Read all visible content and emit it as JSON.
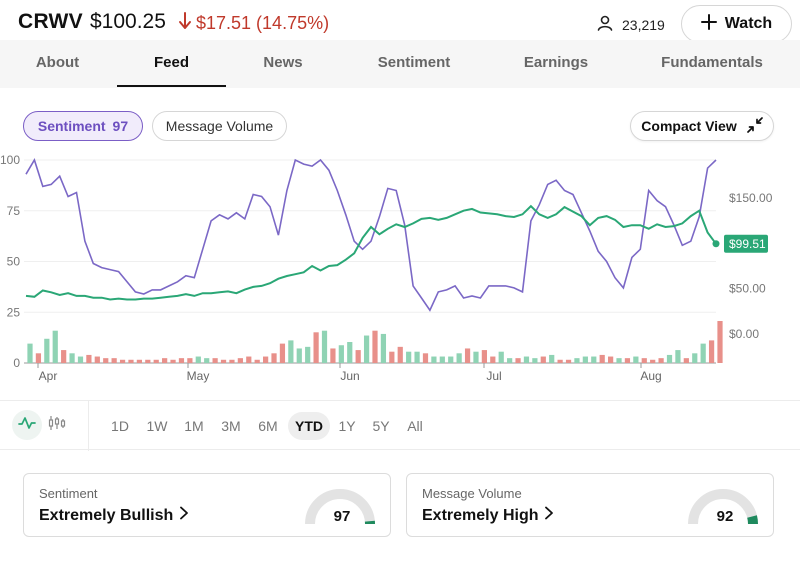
{
  "header": {
    "ticker": "CRWV",
    "price": "$100.25",
    "change": "$17.51 (14.75%)",
    "followers": "23,219",
    "watch_label": "Watch"
  },
  "tabs": [
    "About",
    "Feed",
    "News",
    "Sentiment",
    "Earnings",
    "Fundamentals"
  ],
  "active_tab": "Feed",
  "toolbar": {
    "sentiment_chip_label": "Sentiment",
    "sentiment_chip_value": "97",
    "volume_chip_label": "Message Volume",
    "compact_view_label": "Compact View"
  },
  "colors": {
    "sentiment_line": "#7b68c6",
    "price_line": "#2aa776",
    "volume_up": "#8fd3b4",
    "volume_down": "#e8908a",
    "negative": "#c0392b"
  },
  "chart_data": {
    "type": "line",
    "x_ticks": [
      "Apr",
      "May",
      "Jun",
      "Jul",
      "Aug"
    ],
    "left_axis": [
      0,
      25,
      50,
      75,
      100
    ],
    "right_axis": [
      "$0.00",
      "$50.00",
      "$150.00"
    ],
    "price_label": "$99.51",
    "series": [
      {
        "values": [
          93,
          100,
          87,
          88,
          92,
          82,
          84,
          60,
          49,
          47,
          46,
          45,
          40,
          35,
          34,
          36,
          36,
          38,
          40,
          43,
          42,
          56,
          70,
          73,
          71,
          74,
          71,
          83,
          82,
          77,
          63,
          85,
          100,
          98,
          97,
          100,
          95,
          85,
          73,
          60,
          56,
          60,
          72,
          86,
          85,
          68,
          38,
          32,
          26,
          35,
          36,
          38,
          32,
          33,
          32,
          38,
          38,
          38,
          37,
          35,
          70,
          78,
          88,
          90,
          85,
          83,
          74,
          65,
          55,
          50,
          42,
          37,
          52,
          56,
          85,
          80,
          77,
          68,
          58,
          60,
          72,
          96,
          100
        ]
      },
      {
        "values": [
          42,
          41,
          48,
          46,
          43,
          45,
          42,
          42,
          40,
          40,
          38,
          39,
          38,
          38,
          39,
          39,
          40,
          41,
          42,
          44,
          42,
          45,
          45,
          46,
          47,
          45,
          49,
          52,
          53,
          56,
          61,
          64,
          66,
          68,
          75,
          70,
          75,
          76,
          82,
          89,
          106,
          118,
          110,
          116,
          121,
          118,
          122,
          127,
          128,
          126,
          128,
          132,
          136,
          138,
          134,
          133,
          132,
          130,
          129,
          132,
          141,
          132,
          128,
          132,
          140,
          135,
          130,
          120,
          128,
          130,
          126,
          118,
          120,
          120,
          116,
          121,
          118,
          119,
          122,
          130,
          136,
          112,
          99.51
        ]
      }
    ],
    "volume": {
      "values": [
        12,
        6,
        15,
        20,
        8,
        6,
        4,
        5,
        4,
        3,
        3,
        2,
        2,
        2,
        2,
        2,
        3,
        2,
        3,
        3,
        4,
        3,
        3,
        2,
        2,
        3,
        4,
        2,
        4,
        6,
        12,
        14,
        9,
        10,
        19,
        20,
        9,
        11,
        13,
        8,
        17,
        20,
        18,
        7,
        10,
        7,
        7,
        6,
        4,
        4,
        4,
        6,
        9,
        7,
        8,
        4,
        7,
        3,
        3,
        4,
        3,
        4,
        5,
        2,
        2,
        3,
        4,
        4,
        5,
        4,
        3,
        3,
        4,
        3,
        2,
        3,
        5,
        8,
        3,
        6,
        12,
        14,
        26
      ],
      "up": [
        1,
        0,
        1,
        1,
        0,
        1,
        1,
        0,
        0,
        0,
        0,
        0,
        0,
        0,
        0,
        0,
        0,
        0,
        0,
        0,
        1,
        1,
        0,
        0,
        0,
        0,
        0,
        0,
        0,
        0,
        0,
        1,
        1,
        1,
        0,
        1,
        0,
        1,
        1,
        0,
        1,
        0,
        1,
        0,
        0,
        1,
        1,
        0,
        1,
        1,
        1,
        1,
        0,
        1,
        0,
        0,
        1,
        1,
        0,
        1,
        1,
        0,
        1,
        0,
        0,
        1,
        1,
        1,
        0,
        0,
        1,
        0,
        1,
        0,
        0,
        0,
        1,
        1,
        0,
        1,
        1,
        0,
        0
      ]
    }
  },
  "ranges": [
    "1D",
    "1W",
    "1M",
    "3M",
    "6M",
    "YTD",
    "1Y",
    "5Y",
    "All"
  ],
  "active_range": "YTD",
  "cards": [
    {
      "label": "Sentiment",
      "value": "Extremely Bullish",
      "score": 97
    },
    {
      "label": "Message Volume",
      "value": "Extremely High",
      "score": 92
    }
  ],
  "icons": {
    "change_arrow": "arrow-down-icon",
    "followers": "user-icon",
    "watch": "plus-icon",
    "compact": "collapse-icon",
    "line_chart": "line-chart-icon",
    "candle_chart": "candlestick-icon",
    "card_chevron": "chevron-right-icon"
  }
}
